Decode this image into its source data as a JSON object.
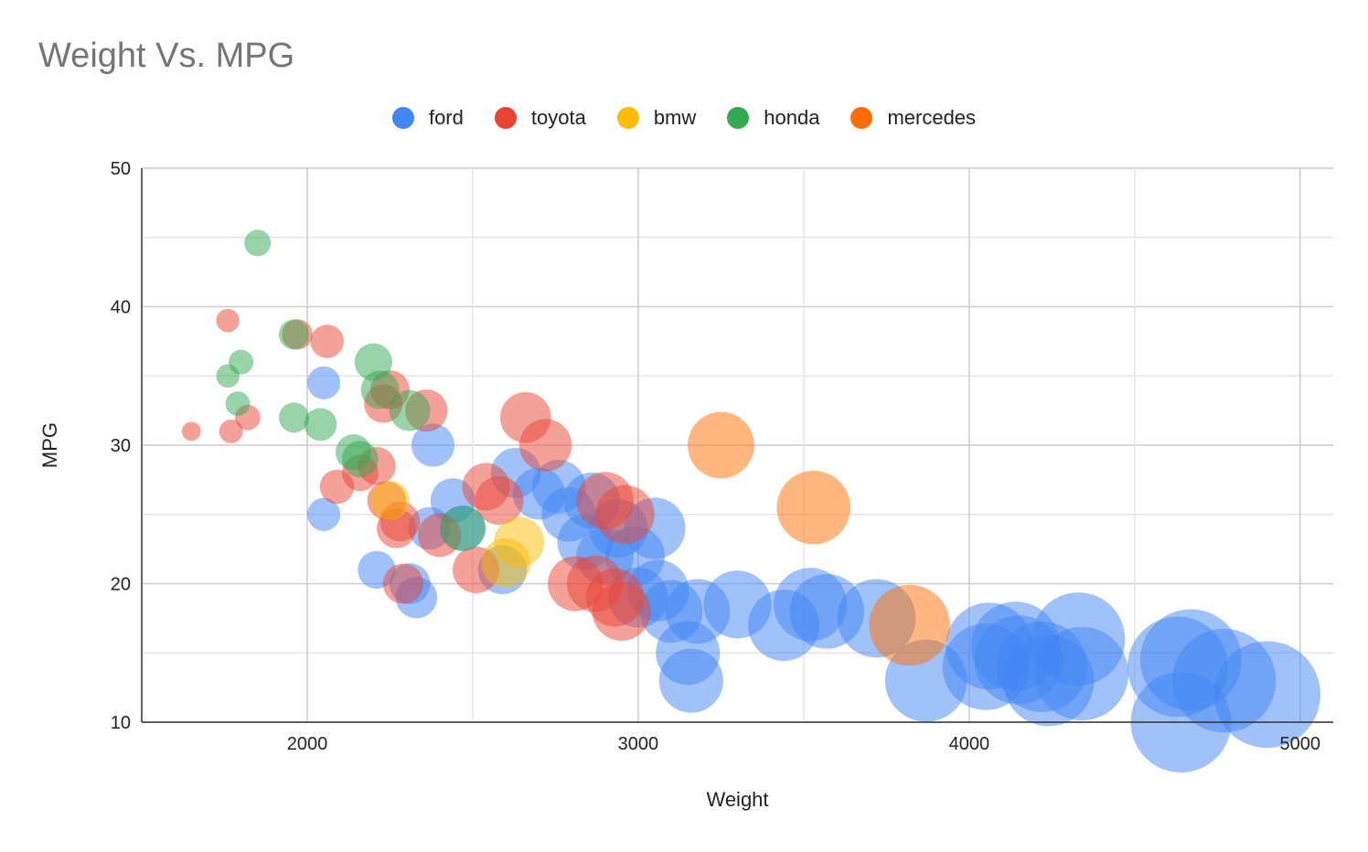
{
  "chart_data": {
    "type": "scatter",
    "variant": "bubble",
    "title": "Weight Vs. MPG",
    "xlabel": "Weight",
    "ylabel": "MPG",
    "xlim": [
      1500,
      5100
    ],
    "ylim": [
      10,
      50
    ],
    "x_ticks": [
      "2000",
      "3000",
      "4000",
      "5000"
    ],
    "y_ticks": [
      "10",
      "20",
      "30",
      "40",
      "50"
    ],
    "x_tick_values": [
      2000,
      3000,
      4000,
      5000
    ],
    "y_tick_values": [
      10,
      20,
      30,
      40,
      50
    ],
    "grid": true,
    "legend_position": "top",
    "series": [
      {
        "name": "ford",
        "color": "#4285F4",
        "points": [
          [
            2050,
            34.5
          ],
          [
            2050,
            25
          ],
          [
            2330,
            19
          ],
          [
            2210,
            21
          ],
          [
            2310,
            20
          ],
          [
            2380,
            30
          ],
          [
            2370,
            24
          ],
          [
            2440,
            26
          ],
          [
            2470,
            24
          ],
          [
            2590,
            21
          ],
          [
            2630,
            28
          ],
          [
            2700,
            26.5
          ],
          [
            2760,
            27
          ],
          [
            2790,
            25
          ],
          [
            2840,
            23
          ],
          [
            2860,
            26
          ],
          [
            2900,
            22
          ],
          [
            2940,
            24
          ],
          [
            2990,
            22
          ],
          [
            3000,
            19
          ],
          [
            3050,
            24
          ],
          [
            3060,
            19.5
          ],
          [
            3100,
            18
          ],
          [
            3150,
            15
          ],
          [
            3160,
            13
          ],
          [
            3180,
            18
          ],
          [
            3300,
            18.5
          ],
          [
            3440,
            17
          ],
          [
            3520,
            18.5
          ],
          [
            3570,
            18
          ],
          [
            3720,
            17.5
          ],
          [
            3870,
            13
          ],
          [
            4050,
            14
          ],
          [
            4060,
            15.5
          ],
          [
            4140,
            15.5
          ],
          [
            4150,
            14.5
          ],
          [
            4220,
            14
          ],
          [
            4240,
            13
          ],
          [
            4330,
            16
          ],
          [
            4340,
            13.5
          ],
          [
            4630,
            14
          ],
          [
            4640,
            10
          ],
          [
            4670,
            14.5
          ],
          [
            4770,
            13
          ],
          [
            4900,
            12
          ]
        ]
      },
      {
        "name": "toyota",
        "color": "#EA4335",
        "points": [
          [
            1650,
            31
          ],
          [
            1760,
            39
          ],
          [
            1770,
            31
          ],
          [
            1820,
            32
          ],
          [
            1970,
            38
          ],
          [
            2060,
            37.5
          ],
          [
            2090,
            27
          ],
          [
            2160,
            28
          ],
          [
            2210,
            28.5
          ],
          [
            2230,
            33
          ],
          [
            2240,
            26
          ],
          [
            2250,
            34
          ],
          [
            2270,
            24
          ],
          [
            2280,
            24.5
          ],
          [
            2290,
            20
          ],
          [
            2360,
            32.5
          ],
          [
            2400,
            23.5
          ],
          [
            2510,
            21
          ],
          [
            2540,
            27
          ],
          [
            2580,
            26
          ],
          [
            2660,
            32
          ],
          [
            2720,
            30
          ],
          [
            2810,
            20
          ],
          [
            2870,
            20
          ],
          [
            2900,
            26
          ],
          [
            2930,
            19
          ],
          [
            2950,
            18
          ],
          [
            2960,
            25
          ]
        ]
      },
      {
        "name": "bmw",
        "color": "#FBBC04",
        "points": [
          [
            2250,
            26
          ],
          [
            2600,
            21.5
          ],
          [
            2640,
            23
          ]
        ]
      },
      {
        "name": "honda",
        "color": "#34A853",
        "points": [
          [
            1850,
            44.6
          ],
          [
            1800,
            36
          ],
          [
            1760,
            35
          ],
          [
            1790,
            33
          ],
          [
            1960,
            38
          ],
          [
            1960,
            32
          ],
          [
            2040,
            31.5
          ],
          [
            2140,
            29.5
          ],
          [
            2160,
            29
          ],
          [
            2200,
            36
          ],
          [
            2220,
            34
          ],
          [
            2310,
            32.5
          ],
          [
            2470,
            24
          ]
        ]
      },
      {
        "name": "mercedes",
        "color": "#FF6D01",
        "points": [
          [
            3250,
            30
          ],
          [
            3530,
            25.5
          ],
          [
            3820,
            17
          ]
        ]
      }
    ]
  }
}
